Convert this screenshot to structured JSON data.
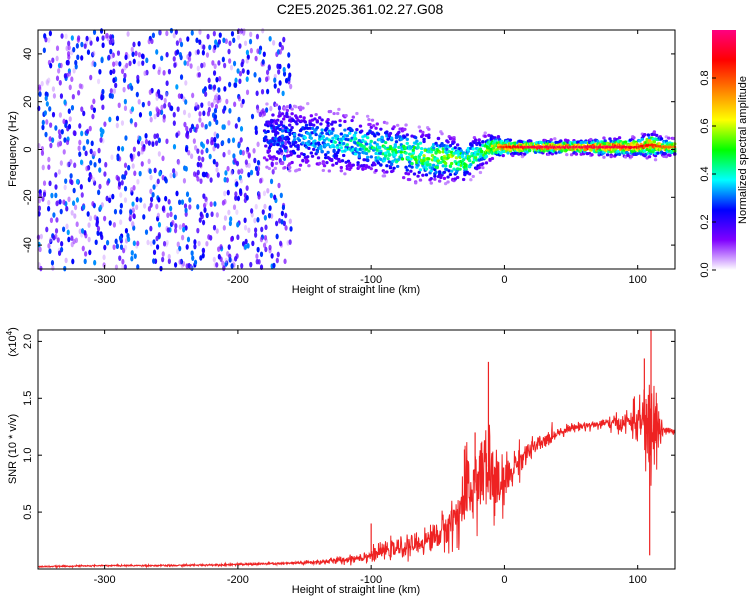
{
  "figure_title": "C2E5.2025.361.02.27.G08",
  "chart_data": [
    {
      "type": "heatmap",
      "title": "C2E5.2025.361.02.27.G08",
      "xlabel": "Height of straight line (km)",
      "ylabel": "Frequency (Hz)",
      "xlim": [
        -350,
        128
      ],
      "ylim": [
        -50,
        50
      ],
      "x_ticks": [
        -300,
        -200,
        -100,
        0,
        100
      ],
      "y_ticks": [
        -40,
        -20,
        0,
        20,
        40
      ],
      "colorbar": {
        "label": "Normalized spectral amplitude",
        "range": [
          0,
          1
        ],
        "ticks": [
          0.0,
          0.2,
          0.4,
          0.6,
          0.8
        ],
        "colors": [
          "#ffffff",
          "#8000ff",
          "#0000ff",
          "#00ffff",
          "#00ff00",
          "#ffff00",
          "#ff8000",
          "#ff0000",
          "#ff0080"
        ]
      },
      "noise_region": {
        "x_from": -350,
        "x_to": -160,
        "freq_spread": 50,
        "amplitude": 0.15
      },
      "ridge": {
        "x": [
          -180,
          -160,
          -140,
          -120,
          -100,
          -80,
          -60,
          -40,
          -30,
          -20,
          -10,
          0,
          20,
          40,
          60,
          80,
          100,
          110,
          120,
          128
        ],
        "freq": [
          6,
          5,
          4,
          3,
          1,
          -1,
          -3,
          -4,
          -5,
          -2,
          1,
          1,
          1,
          1,
          1,
          1,
          1,
          2,
          1,
          1
        ],
        "amplitude": [
          0.3,
          0.35,
          0.4,
          0.45,
          0.5,
          0.55,
          0.6,
          0.65,
          0.6,
          0.55,
          0.7,
          0.85,
          0.95,
          0.95,
          0.95,
          0.95,
          0.9,
          0.85,
          0.8,
          0.75
        ],
        "spread": [
          8,
          8,
          7,
          7,
          6,
          6,
          6,
          5,
          5,
          4,
          3,
          2,
          1.5,
          1.5,
          1.5,
          2,
          2,
          3,
          2,
          2
        ]
      }
    },
    {
      "type": "line",
      "xlabel": "Height of straight line (km)",
      "ylabel": "SNR (10 * v/v)",
      "y_multiplier": "(x10",
      "y_multiplier_exp": "4",
      "y_multiplier_close": ")",
      "xlim": [
        -350,
        128
      ],
      "ylim": [
        0,
        2.1
      ],
      "x_ticks": [
        -300,
        -200,
        -100,
        0,
        100
      ],
      "y_ticks": [
        0.5,
        1.0,
        1.5,
        2.0
      ],
      "y_tick_labels": [
        "0.5",
        "1.0",
        "1.5",
        "2.0"
      ],
      "color": "#ee2222",
      "series": [
        {
          "x": [
            -350,
            -300,
            -250,
            -200,
            -160,
            -140,
            -120,
            -100,
            -90,
            -80,
            -70,
            -60,
            -50,
            -45,
            -40,
            -35,
            -30,
            -25,
            -20,
            -15,
            -12,
            -10,
            -5,
            0,
            5,
            10,
            20,
            30,
            40,
            50,
            60,
            70,
            80,
            90,
            95,
            100,
            105,
            108,
            110,
            112,
            115,
            118,
            120,
            125,
            128
          ],
          "y": [
            0.02,
            0.03,
            0.03,
            0.04,
            0.05,
            0.06,
            0.08,
            0.12,
            0.16,
            0.18,
            0.2,
            0.24,
            0.3,
            0.34,
            0.4,
            0.48,
            0.6,
            0.7,
            0.8,
            0.85,
            0.9,
            0.8,
            0.7,
            0.75,
            0.85,
            0.95,
            1.05,
            1.12,
            1.2,
            1.24,
            1.26,
            1.27,
            1.28,
            1.28,
            1.3,
            1.29,
            1.3,
            1.2,
            1.1,
            1.3,
            1.25,
            1.22,
            1.22,
            1.21,
            1.2
          ],
          "noise": [
            0.005,
            0.005,
            0.006,
            0.008,
            0.01,
            0.02,
            0.03,
            0.05,
            0.06,
            0.07,
            0.08,
            0.09,
            0.12,
            0.14,
            0.18,
            0.22,
            0.28,
            0.32,
            0.35,
            0.38,
            0.4,
            0.35,
            0.25,
            0.2,
            0.15,
            0.12,
            0.08,
            0.06,
            0.04,
            0.03,
            0.03,
            0.04,
            0.05,
            0.08,
            0.12,
            0.15,
            0.25,
            0.35,
            0.5,
            0.4,
            0.25,
            0.12,
            0.06,
            0.02,
            0.02
          ],
          "peaks": [
            {
              "x": -12,
              "y": 1.82
            },
            {
              "x": -22,
              "y": 1.2
            },
            {
              "x": -30,
              "y": 1.05
            },
            {
              "x": -100,
              "y": 0.4
            },
            {
              "x": 105,
              "y": 1.85
            },
            {
              "x": 110,
              "y": 2.1
            },
            {
              "x": 109,
              "y": 0.12
            }
          ]
        }
      ]
    }
  ]
}
